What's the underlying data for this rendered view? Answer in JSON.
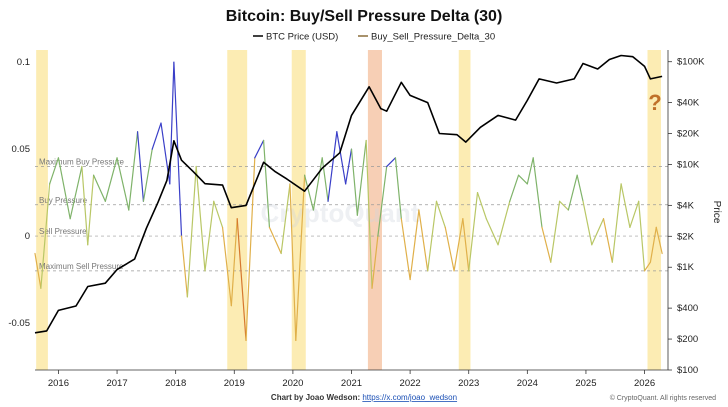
{
  "chart_data": {
    "type": "line",
    "title": "Bitcoin: Buy/Sell Pressure Delta (30)",
    "legend": [
      {
        "name": "BTC Price (USD)",
        "color": "#000000"
      },
      {
        "name": "Buy_Sell_Pressure_Delta_30",
        "color": "#8a6d3b"
      }
    ],
    "legend_position": "top-center",
    "x_axis": {
      "ticks": [
        "2016",
        "2017",
        "2018",
        "2019",
        "2020",
        "2021",
        "2022",
        "2023",
        "2024",
        "2025",
        "2026"
      ],
      "range": [
        2015.6,
        2026.4
      ]
    },
    "y_left": {
      "ticks": [
        "0.1",
        "0.05",
        "0",
        "-0.05"
      ],
      "range": [
        -0.077,
        0.107
      ]
    },
    "y_right": {
      "label": "Price",
      "scale": "log",
      "ticks": [
        "$100K",
        "$40K",
        "$20K",
        "$10K",
        "$4K",
        "$2K",
        "$1K",
        "$400",
        "$200",
        "$100"
      ],
      "range": [
        100,
        130000
      ]
    },
    "reference_lines": [
      {
        "label": "Maximum Buy Pressure",
        "value": 0.04
      },
      {
        "label": "Buy Pressure",
        "value": 0.018
      },
      {
        "label": "Sell Pressure",
        "value": 0.0
      },
      {
        "label": "Maximum Sell Pressure",
        "value": -0.02
      }
    ],
    "highlight_bands": [
      {
        "start": 2015.62,
        "end": 2015.82,
        "color": "#fbe9a6"
      },
      {
        "start": 2018.88,
        "end": 2019.22,
        "color": "#fbe9a6"
      },
      {
        "start": 2019.98,
        "end": 2020.22,
        "color": "#fbe9a6"
      },
      {
        "start": 2021.28,
        "end": 2021.52,
        "color": "#f6c7a8"
      },
      {
        "start": 2022.83,
        "end": 2023.03,
        "color": "#fbe9a6"
      },
      {
        "start": 2026.05,
        "end": 2026.28,
        "color": "#fbe9a6"
      }
    ],
    "btc_price": {
      "x": [
        2015.6,
        2015.8,
        2016.0,
        2016.3,
        2016.5,
        2016.8,
        2017.0,
        2017.3,
        2017.5,
        2017.7,
        2017.85,
        2017.97,
        2018.1,
        2018.3,
        2018.5,
        2018.8,
        2018.95,
        2019.2,
        2019.5,
        2019.7,
        2019.9,
        2020.2,
        2020.5,
        2020.8,
        2021.0,
        2021.3,
        2021.5,
        2021.6,
        2021.85,
        2022.0,
        2022.3,
        2022.5,
        2022.8,
        2022.95,
        2023.2,
        2023.5,
        2023.8,
        2024.0,
        2024.2,
        2024.5,
        2024.8,
        2024.95,
        2025.2,
        2025.4,
        2025.6,
        2025.8,
        2026.0,
        2026.1,
        2026.3
      ],
      "y": [
        230,
        240,
        380,
        420,
        650,
        700,
        950,
        1200,
        2400,
        4300,
        7000,
        17000,
        11000,
        8500,
        6500,
        6300,
        3800,
        4000,
        10500,
        8500,
        7200,
        5500,
        9200,
        13000,
        30000,
        57000,
        35000,
        33000,
        63000,
        47000,
        40000,
        20000,
        19500,
        16500,
        23000,
        30000,
        27000,
        42000,
        68000,
        62000,
        68000,
        96000,
        85000,
        105000,
        115000,
        112000,
        90000,
        68000,
        72000
      ]
    },
    "pressure_delta_30": {
      "x": [
        2015.6,
        2015.7,
        2015.85,
        2016.0,
        2016.2,
        2016.4,
        2016.5,
        2016.6,
        2016.8,
        2017.0,
        2017.2,
        2017.35,
        2017.45,
        2017.6,
        2017.75,
        2017.9,
        2017.97,
        2018.1,
        2018.2,
        2018.35,
        2018.5,
        2018.65,
        2018.8,
        2018.95,
        2019.05,
        2019.2,
        2019.35,
        2019.5,
        2019.6,
        2019.8,
        2019.95,
        2020.05,
        2020.2,
        2020.35,
        2020.5,
        2020.6,
        2020.75,
        2020.9,
        2021.0,
        2021.1,
        2021.25,
        2021.35,
        2021.45,
        2021.6,
        2021.75,
        2021.85,
        2022.0,
        2022.15,
        2022.3,
        2022.45,
        2022.6,
        2022.75,
        2022.9,
        2023.0,
        2023.15,
        2023.3,
        2023.5,
        2023.7,
        2023.85,
        2024.0,
        2024.1,
        2024.25,
        2024.4,
        2024.55,
        2024.7,
        2024.85,
        2024.95,
        2025.1,
        2025.3,
        2025.45,
        2025.6,
        2025.75,
        2025.9,
        2026.0,
        2026.1,
        2026.2,
        2026.3
      ],
      "y": [
        -0.01,
        -0.03,
        0.03,
        0.045,
        0.01,
        0.04,
        -0.005,
        0.035,
        0.02,
        0.045,
        0.015,
        0.06,
        0.02,
        0.05,
        0.065,
        0.03,
        0.1,
        0.0,
        -0.035,
        0.04,
        -0.02,
        0.02,
        0.005,
        -0.04,
        0.01,
        -0.06,
        0.045,
        0.055,
        0.005,
        -0.01,
        0.03,
        -0.06,
        0.035,
        0.015,
        0.045,
        0.02,
        0.06,
        0.03,
        0.05,
        0.012,
        0.055,
        -0.03,
        0.0,
        0.04,
        0.045,
        0.01,
        -0.025,
        0.015,
        -0.02,
        0.02,
        0.005,
        -0.02,
        0.01,
        -0.02,
        0.025,
        0.01,
        -0.005,
        0.02,
        0.035,
        0.03,
        0.045,
        0.005,
        -0.015,
        0.02,
        0.015,
        0.035,
        0.02,
        -0.005,
        0.01,
        -0.015,
        0.03,
        0.005,
        0.02,
        -0.02,
        -0.015,
        0.005,
        -0.01
      ]
    },
    "annotation": "?"
  },
  "footer": {
    "credit_prefix": "Chart by Joao Wedson: ",
    "credit_link": "https://x.com/joao_wedson",
    "copyright": "© CryptoQuant. All rights reserved"
  },
  "watermark": "CryptoQuant"
}
